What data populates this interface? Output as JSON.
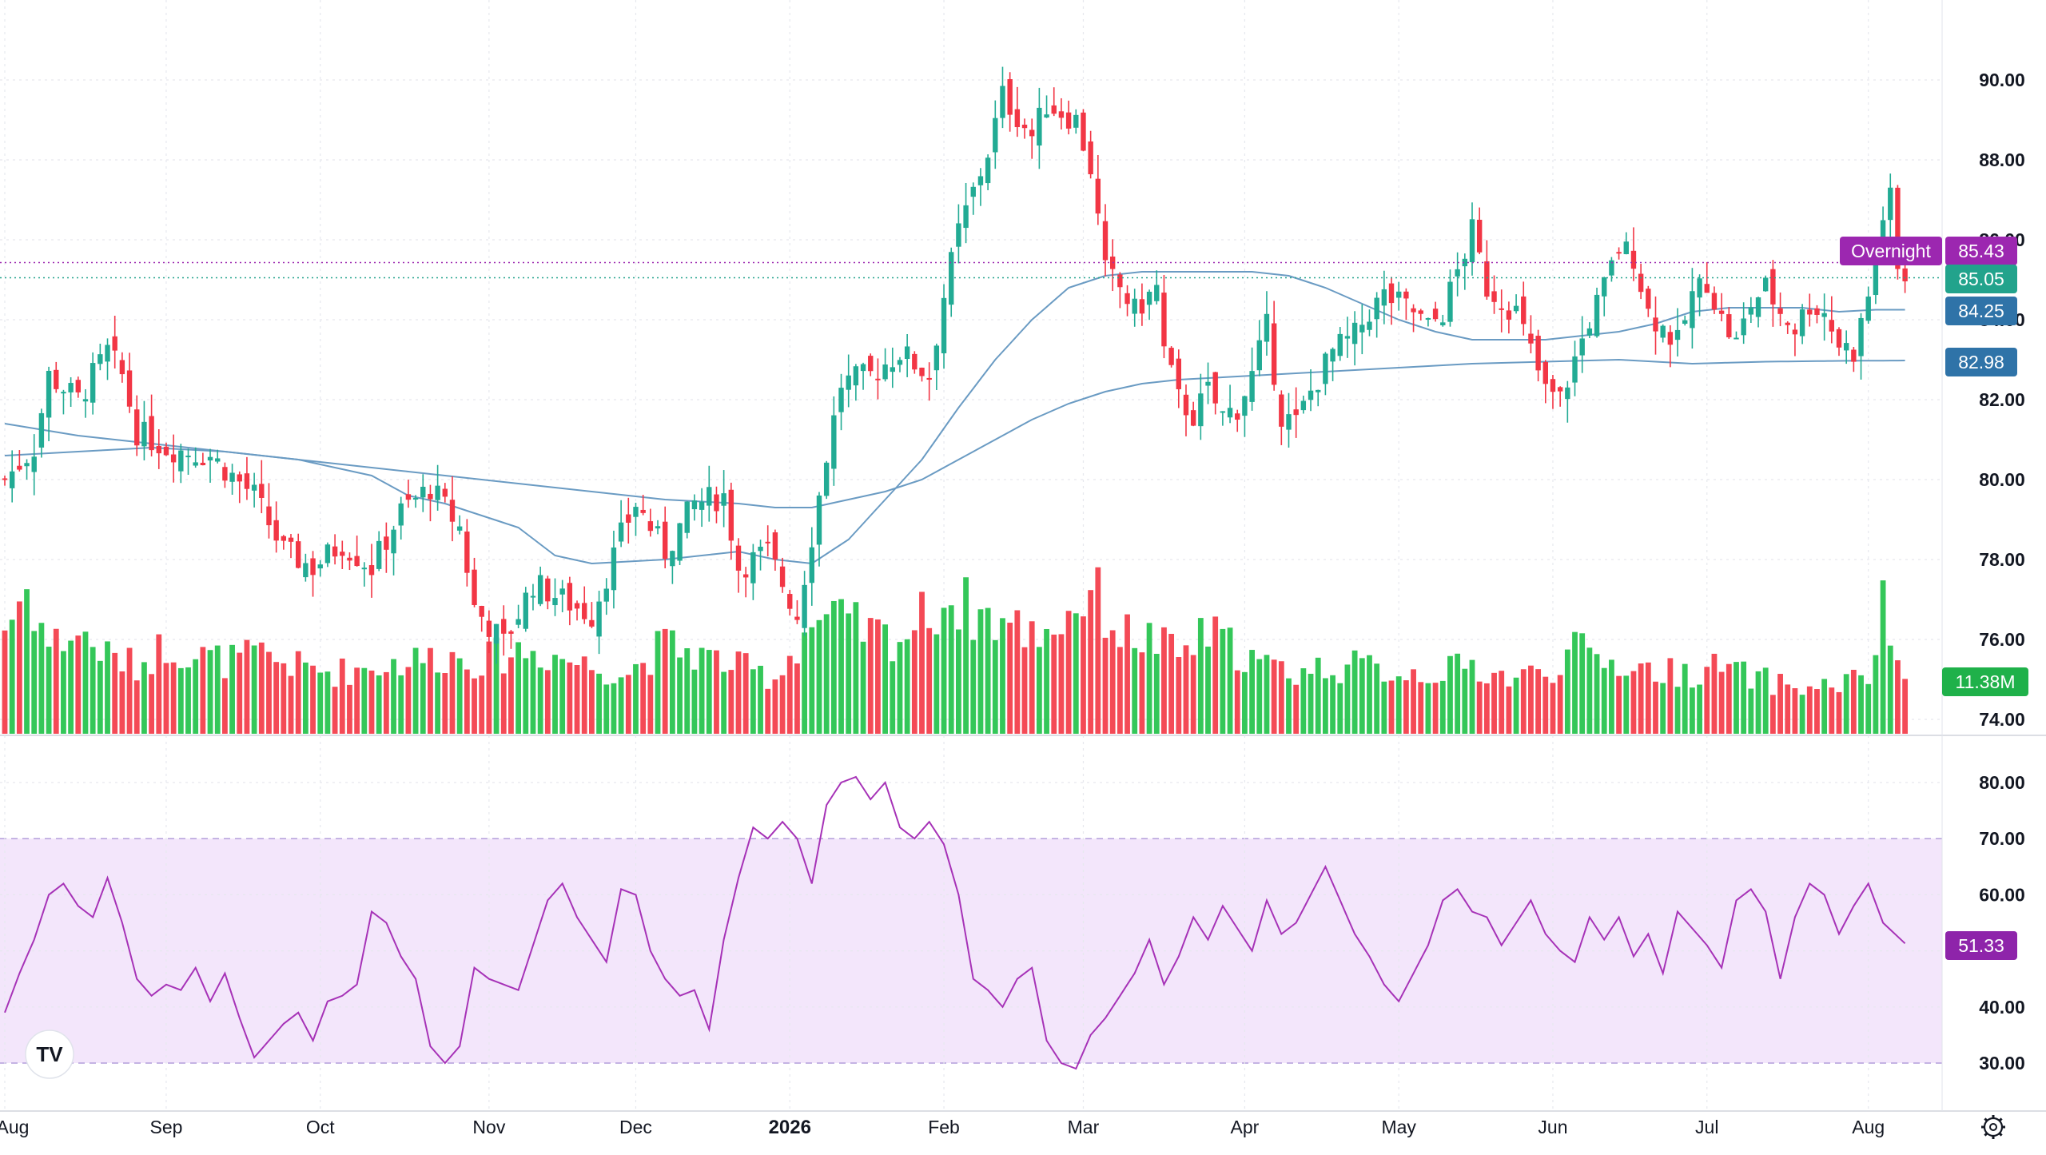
{
  "chart_data": {
    "type": "candlestick",
    "price_axis": {
      "ticks": [
        "90.00",
        "88.00",
        "86.00",
        "84.00",
        "82.00",
        "80.00",
        "78.00",
        "76.00",
        "74.00"
      ],
      "range": [
        74,
        90
      ],
      "grid": true
    },
    "x_axis": {
      "ticks": [
        {
          "label": "Aug",
          "index": 0,
          "bold": false
        },
        {
          "label": "Sep",
          "index": 22,
          "bold": false
        },
        {
          "label": "Oct",
          "index": 43,
          "bold": false
        },
        {
          "label": "Nov",
          "index": 66,
          "bold": false
        },
        {
          "label": "Dec",
          "index": 86,
          "bold": false
        },
        {
          "label": "2026",
          "index": 107,
          "bold": true
        },
        {
          "label": "Feb",
          "index": 128,
          "bold": false
        },
        {
          "label": "Mar",
          "index": 147,
          "bold": false
        },
        {
          "label": "Apr",
          "index": 169,
          "bold": false
        },
        {
          "label": "May",
          "index": 190,
          "bold": false
        },
        {
          "label": "Jun",
          "index": 211,
          "bold": false
        },
        {
          "label": "Jul",
          "index": 232,
          "bold": false
        },
        {
          "label": "Aug",
          "index": 254,
          "bold": false
        }
      ]
    },
    "ohlc_keypoints": [
      [
        0,
        80.0
      ],
      [
        4,
        80.8
      ],
      [
        6,
        82.6
      ],
      [
        10,
        82.0
      ],
      [
        14,
        83.2
      ],
      [
        16,
        82.6
      ],
      [
        18,
        81.2
      ],
      [
        22,
        80.8
      ],
      [
        28,
        80.6
      ],
      [
        34,
        79.6
      ],
      [
        38,
        78.2
      ],
      [
        42,
        77.8
      ],
      [
        46,
        78.4
      ],
      [
        50,
        77.8
      ],
      [
        54,
        79.2
      ],
      [
        58,
        79.8
      ],
      [
        62,
        78.8
      ],
      [
        64,
        76.8
      ],
      [
        68,
        75.9
      ],
      [
        72,
        77.4
      ],
      [
        76,
        77.0
      ],
      [
        80,
        76.6
      ],
      [
        84,
        78.6
      ],
      [
        86,
        79.4
      ],
      [
        90,
        78.2
      ],
      [
        94,
        79.4
      ],
      [
        98,
        79.6
      ],
      [
        100,
        77.8
      ],
      [
        104,
        78.2
      ],
      [
        108,
        76.6
      ],
      [
        110,
        78.6
      ],
      [
        112,
        80.6
      ],
      [
        114,
        82.4
      ],
      [
        118,
        82.6
      ],
      [
        122,
        83.2
      ],
      [
        126,
        82.6
      ],
      [
        128,
        84.6
      ],
      [
        130,
        86.2
      ],
      [
        134,
        88.2
      ],
      [
        136,
        89.6
      ],
      [
        140,
        88.6
      ],
      [
        142,
        89.4
      ],
      [
        146,
        89.0
      ],
      [
        148,
        87.8
      ],
      [
        150,
        85.2
      ],
      [
        152,
        84.8
      ],
      [
        154,
        84.2
      ],
      [
        157,
        84.8
      ],
      [
        158,
        83.2
      ],
      [
        160,
        82.0
      ],
      [
        162,
        81.6
      ],
      [
        164,
        82.2
      ],
      [
        166,
        81.6
      ],
      [
        168,
        81.8
      ],
      [
        170,
        82.6
      ],
      [
        172,
        83.8
      ],
      [
        174,
        81.6
      ],
      [
        176,
        81.4
      ],
      [
        178,
        82.2
      ],
      [
        181,
        83.2
      ],
      [
        184,
        83.6
      ],
      [
        186,
        84.2
      ],
      [
        188,
        84.6
      ],
      [
        192,
        84.2
      ],
      [
        194,
        83.8
      ],
      [
        196,
        84.2
      ],
      [
        198,
        85.2
      ],
      [
        200,
        86.2
      ],
      [
        202,
        84.8
      ],
      [
        206,
        84.2
      ],
      [
        208,
        83.2
      ],
      [
        210,
        82.2
      ],
      [
        212,
        82.0
      ],
      [
        214,
        83.0
      ],
      [
        216,
        84.0
      ],
      [
        218,
        84.8
      ],
      [
        220,
        85.8
      ],
      [
        222,
        85.6
      ],
      [
        224,
        84.2
      ],
      [
        226,
        83.8
      ],
      [
        228,
        83.4
      ],
      [
        230,
        84.6
      ],
      [
        232,
        85.0
      ],
      [
        234,
        84.0
      ],
      [
        236,
        83.4
      ],
      [
        238,
        84.4
      ],
      [
        240,
        84.8
      ],
      [
        242,
        84.2
      ],
      [
        244,
        83.8
      ],
      [
        246,
        84.4
      ],
      [
        248,
        84.2
      ],
      [
        250,
        83.4
      ],
      [
        252,
        83.2
      ],
      [
        254,
        84.6
      ],
      [
        256,
        86.6
      ],
      [
        257,
        87.0
      ],
      [
        258,
        85.2
      ],
      [
        259,
        85.05
      ]
    ],
    "ma_fast_keypoints": [
      [
        0,
        81.4
      ],
      [
        10,
        81.1
      ],
      [
        20,
        80.9
      ],
      [
        30,
        80.7
      ],
      [
        40,
        80.5
      ],
      [
        50,
        80.1
      ],
      [
        55,
        79.6
      ],
      [
        60,
        79.4
      ],
      [
        65,
        79.1
      ],
      [
        70,
        78.8
      ],
      [
        75,
        78.1
      ],
      [
        80,
        77.9
      ],
      [
        90,
        78.0
      ],
      [
        100,
        78.2
      ],
      [
        105,
        78.0
      ],
      [
        110,
        77.9
      ],
      [
        115,
        78.5
      ],
      [
        120,
        79.5
      ],
      [
        125,
        80.5
      ],
      [
        130,
        81.8
      ],
      [
        135,
        83.0
      ],
      [
        140,
        84.0
      ],
      [
        145,
        84.8
      ],
      [
        150,
        85.1
      ],
      [
        155,
        85.2
      ],
      [
        160,
        85.2
      ],
      [
        165,
        85.2
      ],
      [
        170,
        85.2
      ],
      [
        175,
        85.1
      ],
      [
        180,
        84.8
      ],
      [
        185,
        84.4
      ],
      [
        190,
        84.0
      ],
      [
        195,
        83.7
      ],
      [
        200,
        83.5
      ],
      [
        205,
        83.5
      ],
      [
        210,
        83.5
      ],
      [
        215,
        83.6
      ],
      [
        220,
        83.7
      ],
      [
        225,
        83.9
      ],
      [
        230,
        84.2
      ],
      [
        235,
        84.3
      ],
      [
        240,
        84.3
      ],
      [
        245,
        84.3
      ],
      [
        250,
        84.2
      ],
      [
        255,
        84.25
      ],
      [
        259,
        84.25
      ]
    ],
    "ma_slow_keypoints": [
      [
        0,
        80.6
      ],
      [
        10,
        80.7
      ],
      [
        20,
        80.8
      ],
      [
        30,
        80.7
      ],
      [
        40,
        80.5
      ],
      [
        50,
        80.3
      ],
      [
        60,
        80.1
      ],
      [
        70,
        79.9
      ],
      [
        80,
        79.7
      ],
      [
        90,
        79.5
      ],
      [
        100,
        79.4
      ],
      [
        105,
        79.3
      ],
      [
        110,
        79.3
      ],
      [
        115,
        79.5
      ],
      [
        120,
        79.7
      ],
      [
        125,
        80.0
      ],
      [
        130,
        80.5
      ],
      [
        135,
        81.0
      ],
      [
        140,
        81.5
      ],
      [
        145,
        81.9
      ],
      [
        150,
        82.2
      ],
      [
        155,
        82.4
      ],
      [
        160,
        82.5
      ],
      [
        170,
        82.6
      ],
      [
        180,
        82.7
      ],
      [
        190,
        82.8
      ],
      [
        200,
        82.9
      ],
      [
        210,
        82.95
      ],
      [
        220,
        83.0
      ],
      [
        230,
        82.9
      ],
      [
        240,
        82.95
      ],
      [
        250,
        82.97
      ],
      [
        259,
        82.98
      ]
    ],
    "volume_keypoints": [
      [
        0,
        0.95
      ],
      [
        3,
        1.3
      ],
      [
        6,
        0.8
      ],
      [
        10,
        0.9
      ],
      [
        14,
        0.7
      ],
      [
        18,
        0.6
      ],
      [
        22,
        0.8
      ],
      [
        26,
        0.7
      ],
      [
        30,
        0.65
      ],
      [
        35,
        0.7
      ],
      [
        40,
        0.6
      ],
      [
        45,
        0.55
      ],
      [
        50,
        0.6
      ],
      [
        55,
        0.65
      ],
      [
        60,
        0.7
      ],
      [
        65,
        0.65
      ],
      [
        70,
        0.75
      ],
      [
        75,
        0.7
      ],
      [
        80,
        0.6
      ],
      [
        85,
        0.55
      ],
      [
        90,
        0.8
      ],
      [
        95,
        0.7
      ],
      [
        100,
        0.6
      ],
      [
        105,
        0.5
      ],
      [
        110,
        1.0
      ],
      [
        114,
        1.0
      ],
      [
        118,
        0.9
      ],
      [
        122,
        0.85
      ],
      [
        126,
        1.1
      ],
      [
        129,
        1.2
      ],
      [
        132,
        1.1
      ],
      [
        136,
        1.0
      ],
      [
        140,
        0.9
      ],
      [
        144,
        1.0
      ],
      [
        148,
        1.3
      ],
      [
        150,
        1.1
      ],
      [
        152,
        0.9
      ],
      [
        156,
        0.85
      ],
      [
        160,
        0.7
      ],
      [
        164,
        0.9
      ],
      [
        168,
        0.75
      ],
      [
        172,
        0.6
      ],
      [
        176,
        0.55
      ],
      [
        180,
        0.6
      ],
      [
        185,
        0.6
      ],
      [
        190,
        0.55
      ],
      [
        195,
        0.55
      ],
      [
        200,
        0.6
      ],
      [
        205,
        0.5
      ],
      [
        210,
        0.55
      ],
      [
        214,
        0.75
      ],
      [
        218,
        0.65
      ],
      [
        222,
        0.6
      ],
      [
        226,
        0.55
      ],
      [
        230,
        0.55
      ],
      [
        234,
        0.6
      ],
      [
        238,
        0.5
      ],
      [
        242,
        0.45
      ],
      [
        246,
        0.4
      ],
      [
        250,
        0.45
      ],
      [
        254,
        0.5
      ],
      [
        256,
        1.1
      ],
      [
        258,
        0.65
      ],
      [
        259,
        0.55
      ]
    ],
    "rsi_keypoints": [
      [
        0,
        39
      ],
      [
        2,
        46
      ],
      [
        4,
        52
      ],
      [
        6,
        60
      ],
      [
        8,
        62
      ],
      [
        10,
        58
      ],
      [
        12,
        56
      ],
      [
        14,
        63
      ],
      [
        16,
        55
      ],
      [
        18,
        45
      ],
      [
        20,
        42
      ],
      [
        22,
        44
      ],
      [
        24,
        43
      ],
      [
        26,
        47
      ],
      [
        28,
        41
      ],
      [
        30,
        46
      ],
      [
        32,
        38
      ],
      [
        34,
        31
      ],
      [
        36,
        34
      ],
      [
        38,
        37
      ],
      [
        40,
        39
      ],
      [
        42,
        34
      ],
      [
        44,
        41
      ],
      [
        46,
        42
      ],
      [
        48,
        44
      ],
      [
        50,
        57
      ],
      [
        52,
        55
      ],
      [
        54,
        49
      ],
      [
        56,
        45
      ],
      [
        58,
        33
      ],
      [
        60,
        30
      ],
      [
        62,
        33
      ],
      [
        64,
        47
      ],
      [
        66,
        45
      ],
      [
        68,
        44
      ],
      [
        70,
        43
      ],
      [
        72,
        51
      ],
      [
        74,
        59
      ],
      [
        76,
        62
      ],
      [
        78,
        56
      ],
      [
        80,
        52
      ],
      [
        82,
        48
      ],
      [
        84,
        61
      ],
      [
        86,
        60
      ],
      [
        88,
        50
      ],
      [
        90,
        45
      ],
      [
        92,
        42
      ],
      [
        94,
        43
      ],
      [
        96,
        36
      ],
      [
        98,
        52
      ],
      [
        100,
        63
      ],
      [
        102,
        72
      ],
      [
        104,
        70
      ],
      [
        106,
        73
      ],
      [
        108,
        70
      ],
      [
        110,
        62
      ],
      [
        112,
        76
      ],
      [
        114,
        80
      ],
      [
        116,
        81
      ],
      [
        118,
        77
      ],
      [
        120,
        80
      ],
      [
        122,
        72
      ],
      [
        124,
        70
      ],
      [
        126,
        73
      ],
      [
        128,
        69
      ],
      [
        130,
        60
      ],
      [
        132,
        45
      ],
      [
        134,
        43
      ],
      [
        136,
        40
      ],
      [
        138,
        45
      ],
      [
        140,
        47
      ],
      [
        142,
        34
      ],
      [
        144,
        30
      ],
      [
        146,
        29
      ],
      [
        148,
        35
      ],
      [
        150,
        38
      ],
      [
        152,
        42
      ],
      [
        154,
        46
      ],
      [
        156,
        52
      ],
      [
        158,
        44
      ],
      [
        160,
        49
      ],
      [
        162,
        56
      ],
      [
        164,
        52
      ],
      [
        166,
        58
      ],
      [
        168,
        54
      ],
      [
        170,
        50
      ],
      [
        172,
        59
      ],
      [
        174,
        53
      ],
      [
        176,
        55
      ],
      [
        178,
        60
      ],
      [
        180,
        65
      ],
      [
        182,
        59
      ],
      [
        184,
        53
      ],
      [
        186,
        49
      ],
      [
        188,
        44
      ],
      [
        190,
        41
      ],
      [
        192,
        46
      ],
      [
        194,
        51
      ],
      [
        196,
        59
      ],
      [
        198,
        61
      ],
      [
        200,
        57
      ],
      [
        202,
        56
      ],
      [
        204,
        51
      ],
      [
        206,
        55
      ],
      [
        208,
        59
      ],
      [
        210,
        53
      ],
      [
        212,
        50
      ],
      [
        214,
        48
      ],
      [
        216,
        56
      ],
      [
        218,
        52
      ],
      [
        220,
        56
      ],
      [
        222,
        49
      ],
      [
        224,
        53
      ],
      [
        226,
        46
      ],
      [
        228,
        57
      ],
      [
        230,
        54
      ],
      [
        232,
        51
      ],
      [
        234,
        47
      ],
      [
        236,
        59
      ],
      [
        238,
        61
      ],
      [
        240,
        57
      ],
      [
        242,
        45
      ],
      [
        244,
        56
      ],
      [
        246,
        62
      ],
      [
        248,
        60
      ],
      [
        250,
        53
      ],
      [
        252,
        58
      ],
      [
        254,
        62
      ],
      [
        256,
        55
      ],
      [
        259,
        51.33
      ]
    ],
    "rsi_axis": {
      "ticks": [
        "80.00",
        "70.00",
        "60.00",
        "50.00",
        "40.00",
        "30.00"
      ],
      "range": [
        26,
        84
      ],
      "band": [
        30,
        70
      ]
    },
    "badges": {
      "overnight_label": "Overnight",
      "overnight_value": "85.43",
      "last_price": "85.05",
      "ma_fast_value": "84.25",
      "ma_slow_value": "82.98",
      "volume_value": "11.38M",
      "rsi_value": "51.33"
    },
    "colors": {
      "up": "#22ab94",
      "down": "#f23645",
      "vol_up": "#34c759",
      "vol_down": "#f44a56",
      "ma": "#6a9bc3",
      "rsi_line": "#a632b7",
      "rsi_band": "#f3e6fb",
      "overnight": "#9c27b0",
      "last_price": "#22a38c",
      "ma_badge": "#2f73a8",
      "vol_badge": "#1fb14a",
      "rsi_badge": "#8e24aa"
    }
  },
  "logo": {
    "text": "TV"
  },
  "settings_icon": "gear-icon"
}
